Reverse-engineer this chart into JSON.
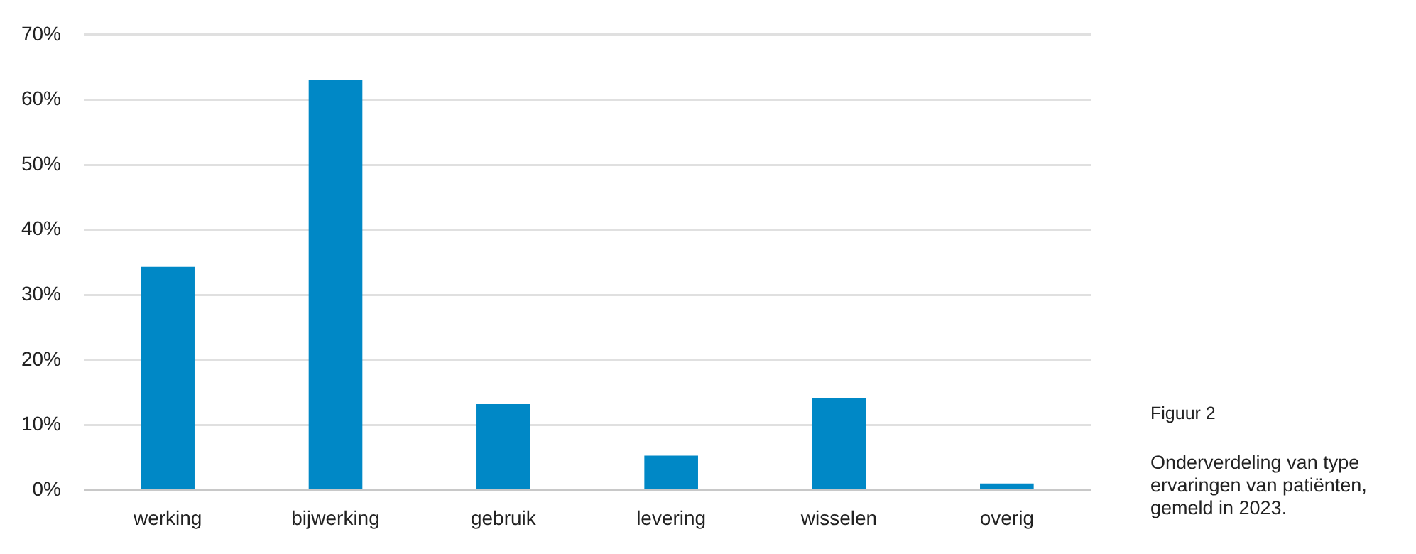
{
  "chart_data": {
    "type": "bar",
    "title": "Figuur 2",
    "subtitle": "Onderverdeling van type ervaringen van patiënten, gemeld in 2023.",
    "categories": [
      "werking",
      "bijwerking",
      "gebruik",
      "levering",
      "wisselen",
      "overig"
    ],
    "values": [
      34.3,
      63,
      13.2,
      5.3,
      14.2,
      1
    ],
    "color": "#0088c6",
    "ylim": [
      0,
      70
    ],
    "yticks": [
      {
        "value": 0,
        "label": "0%"
      },
      {
        "value": 10,
        "label": "10%"
      },
      {
        "value": 20,
        "label": "20%"
      },
      {
        "value": 30,
        "label": "30%"
      },
      {
        "value": 40,
        "label": "40%"
      },
      {
        "value": 50,
        "label": "50%"
      },
      {
        "value": 60,
        "label": "60%"
      },
      {
        "value": 70,
        "label": "70%"
      }
    ],
    "grid": "y"
  }
}
